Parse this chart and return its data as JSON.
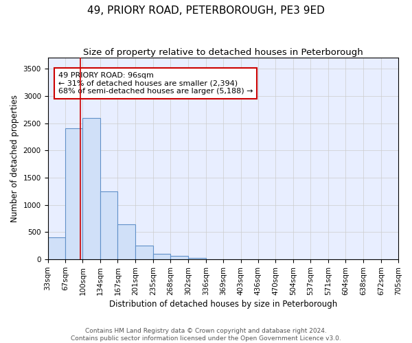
{
  "title1": "49, PRIORY ROAD, PETERBOROUGH, PE3 9ED",
  "title2": "Size of property relative to detached houses in Peterborough",
  "xlabel": "Distribution of detached houses by size in Peterborough",
  "ylabel": "Number of detached properties",
  "bin_edges": [
    33,
    67,
    100,
    134,
    167,
    201,
    235,
    268,
    302,
    336,
    369,
    403,
    436,
    470,
    504,
    537,
    571,
    604,
    638,
    672,
    705
  ],
  "bar_heights": [
    400,
    2400,
    2600,
    1250,
    650,
    250,
    100,
    60,
    30,
    0,
    0,
    0,
    0,
    0,
    0,
    0,
    0,
    0,
    0,
    0
  ],
  "bar_color": "#d0e0f8",
  "bar_edge_color": "#6090c8",
  "bar_edge_width": 0.8,
  "red_line_x": 96,
  "red_line_color": "#cc0000",
  "annotation_line1": "49 PRIORY ROAD: 96sqm",
  "annotation_line2": "← 31% of detached houses are smaller (2,394)",
  "annotation_line3": "68% of semi-detached houses are larger (5,188) →",
  "annotation_box_color": "#ffffff",
  "annotation_box_edge_color": "#cc0000",
  "ylim": [
    0,
    3700
  ],
  "yticks": [
    0,
    500,
    1000,
    1500,
    2000,
    2500,
    3000,
    3500
  ],
  "grid_color": "#cccccc",
  "bg_color": "#e8eeff",
  "footnote": "Contains HM Land Registry data © Crown copyright and database right 2024.\nContains public sector information licensed under the Open Government Licence v3.0.",
  "title1_fontsize": 11,
  "title2_fontsize": 9.5,
  "axis_label_fontsize": 8.5,
  "tick_fontsize": 7.5,
  "annotation_fontsize": 8,
  "footnote_fontsize": 6.5
}
